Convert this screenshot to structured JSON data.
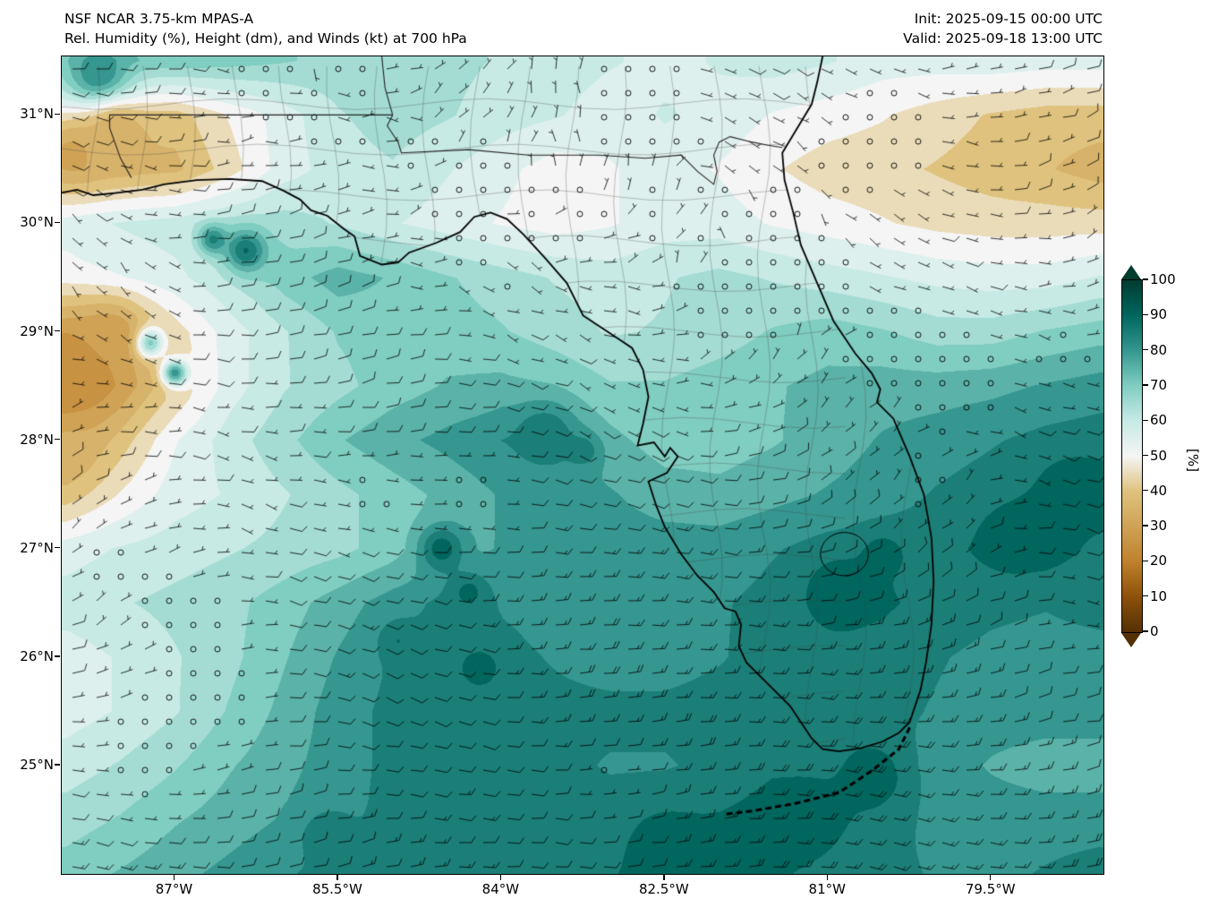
{
  "header": {
    "title_line1": "NSF NCAR 3.75-km MPAS-A",
    "title_line2": "Rel. Humidity (%), Height (dm), and Winds (kt) at 700 hPa",
    "init_label": "Init: 2025-09-15 00:00 UTC",
    "valid_label": "Valid: 2025-09-18 13:00 UTC"
  },
  "chart_data": {
    "type": "heatmap",
    "title": "NSF NCAR 3.75-km MPAS-A",
    "subtitle": "Rel. Humidity (%), Height (dm), and Winds (kt) at 700 hPa",
    "init_time": "2025-09-15 00:00 UTC",
    "valid_time": "2025-09-18 13:00 UTC",
    "variable": "Relative humidity at 700 hPa (%), wind barbs in kt; region: Florida and adjacent Gulf/Atlantic",
    "axes": {
      "lon_range": [
        -88.04,
        -78.47
      ],
      "lat_range": [
        24.0,
        31.54
      ],
      "x_ticks": [
        {
          "lon": -87.0,
          "label": "87°W"
        },
        {
          "lon": -85.5,
          "label": "85.5°W"
        },
        {
          "lon": -84.0,
          "label": "84°W"
        },
        {
          "lon": -82.5,
          "label": "82.5°W"
        },
        {
          "lon": -81.0,
          "label": "81°W"
        },
        {
          "lon": -79.5,
          "label": "79.5°W"
        }
      ],
      "y_ticks": [
        {
          "lat": 31.0,
          "label": "31°N"
        },
        {
          "lat": 30.0,
          "label": "30°N"
        },
        {
          "lat": 29.0,
          "label": "29°N"
        },
        {
          "lat": 28.0,
          "label": "28°N"
        },
        {
          "lat": 27.0,
          "label": "27°N"
        },
        {
          "lat": 26.0,
          "label": "26°N"
        },
        {
          "lat": 25.0,
          "label": "25°N"
        }
      ]
    },
    "colorbar": {
      "label": "[%]",
      "ticks": [
        0,
        10,
        20,
        30,
        40,
        50,
        60,
        70,
        80,
        90,
        100
      ],
      "stops": [
        {
          "v": 0,
          "c": "#543005"
        },
        {
          "v": 10,
          "c": "#8c510a"
        },
        {
          "v": 20,
          "c": "#bf812d"
        },
        {
          "v": 30,
          "c": "#cfa256"
        },
        {
          "v": 40,
          "c": "#dfc27d"
        },
        {
          "v": 50,
          "c": "#f5f5f5"
        },
        {
          "v": 60,
          "c": "#c7eae5"
        },
        {
          "v": 70,
          "c": "#80cdc1"
        },
        {
          "v": 80,
          "c": "#35978f"
        },
        {
          "v": 90,
          "c": "#01665e"
        },
        {
          "v": 100,
          "c": "#003c30"
        }
      ],
      "level_step": 5
    },
    "rh_field": {
      "lons_start": -88.0,
      "lons_step": 0.5,
      "n_lons": 20,
      "lats_start": 31.5,
      "lats_step": -0.5,
      "n_lats": 16,
      "values": [
        [
          68,
          70,
          72,
          70,
          68,
          66,
          65,
          64,
          62,
          60,
          58,
          56,
          58,
          60,
          58,
          55,
          55,
          56,
          55,
          55
        ],
        [
          50,
          42,
          40,
          48,
          55,
          62,
          65,
          63,
          60,
          58,
          55,
          58,
          56,
          52,
          50,
          48,
          45,
          42,
          40,
          40
        ],
        [
          38,
          35,
          36,
          45,
          55,
          60,
          62,
          58,
          54,
          50,
          52,
          55,
          52,
          48,
          45,
          44,
          42,
          40,
          38,
          35
        ],
        [
          55,
          58,
          60,
          63,
          65,
          62,
          58,
          55,
          52,
          50,
          52,
          55,
          55,
          52,
          50,
          48,
          46,
          45,
          45,
          45
        ],
        [
          50,
          53,
          56,
          62,
          70,
          75,
          72,
          68,
          65,
          62,
          60,
          62,
          64,
          62,
          60,
          58,
          56,
          55,
          55,
          58
        ],
        [
          30,
          34,
          45,
          55,
          62,
          68,
          70,
          70,
          68,
          65,
          62,
          63,
          65,
          68,
          70,
          68,
          65,
          65,
          68,
          70
        ],
        [
          25,
          30,
          42,
          55,
          62,
          66,
          70,
          73,
          74,
          72,
          68,
          68,
          70,
          72,
          74,
          75,
          75,
          76,
          78,
          80
        ],
        [
          30,
          40,
          52,
          60,
          66,
          72,
          76,
          79,
          82,
          80,
          74,
          70,
          70,
          72,
          75,
          78,
          80,
          82,
          84,
          85
        ],
        [
          40,
          48,
          55,
          58,
          62,
          66,
          70,
          74,
          78,
          80,
          78,
          75,
          74,
          76,
          78,
          80,
          83,
          85,
          88,
          90
        ],
        [
          55,
          58,
          60,
          62,
          64,
          66,
          70,
          74,
          78,
          80,
          80,
          80,
          80,
          82,
          84,
          85,
          86,
          88,
          90,
          86
        ],
        [
          60,
          62,
          64,
          66,
          70,
          75,
          80,
          84,
          82,
          80,
          80,
          80,
          82,
          84,
          86,
          88,
          86,
          84,
          83,
          85
        ],
        [
          55,
          58,
          62,
          66,
          72,
          78,
          83,
          85,
          84,
          82,
          80,
          80,
          82,
          85,
          86,
          85,
          83,
          81,
          80,
          80
        ],
        [
          55,
          58,
          62,
          68,
          74,
          80,
          84,
          85,
          85,
          84,
          84,
          84,
          85,
          85,
          85,
          84,
          82,
          80,
          80,
          80
        ],
        [
          60,
          63,
          67,
          72,
          76,
          80,
          84,
          85,
          85,
          84,
          82,
          82,
          84,
          86,
          84,
          82,
          80,
          77,
          75,
          75
        ],
        [
          65,
          68,
          72,
          75,
          78,
          81,
          84,
          85,
          85,
          85,
          85,
          87,
          88,
          90,
          87,
          84,
          81,
          80,
          80,
          80
        ],
        [
          70,
          73,
          76,
          79,
          82,
          84,
          85,
          85,
          85,
          86,
          87,
          89,
          90,
          88,
          86,
          84,
          82,
          81,
          83,
          85
        ]
      ]
    },
    "rh_blobs": [
      [
        -87.7,
        31.35,
        0.3,
        85
      ],
      [
        -86.35,
        29.75,
        0.2,
        90
      ],
      [
        -86.65,
        29.85,
        0.14,
        86
      ],
      [
        -87.25,
        28.9,
        0.14,
        86
      ],
      [
        -87.0,
        28.62,
        0.12,
        84
      ],
      [
        -84.55,
        27.0,
        0.22,
        92
      ],
      [
        -84.3,
        26.6,
        0.17,
        90
      ],
      [
        -84.95,
        26.15,
        0.17,
        88
      ],
      [
        -83.6,
        28.05,
        0.28,
        88
      ],
      [
        -83.25,
        27.9,
        0.17,
        86
      ],
      [
        -80.9,
        26.6,
        0.33,
        92
      ],
      [
        -80.5,
        26.95,
        0.22,
        90
      ],
      [
        -79.3,
        27.1,
        0.28,
        92
      ],
      [
        -78.75,
        27.55,
        0.33,
        90
      ],
      [
        -81.2,
        24.55,
        0.33,
        92
      ],
      [
        -84.2,
        25.9,
        0.22,
        90
      ],
      [
        -85.6,
        24.35,
        0.22,
        88
      ],
      [
        -82.5,
        24.25,
        0.33,
        90
      ],
      [
        -80.6,
        24.9,
        0.35,
        92
      ],
      [
        -87.95,
        28.6,
        0.4,
        22
      ],
      [
        -87.6,
        28.95,
        0.33,
        28
      ],
      [
        -87.95,
        30.65,
        0.33,
        30
      ],
      [
        -87.55,
        30.85,
        0.28,
        33
      ],
      [
        -88.0,
        27.9,
        0.3,
        35
      ]
    ],
    "wind": {
      "units": "kt",
      "barb_spacing_px": 27,
      "typical_speed_kt": [
        5,
        25
      ],
      "general_flow": "easterly to northeasterly",
      "calm_threshold_kt": 5,
      "calm_patches": [
        [
          -80.6,
          30.75,
          0.85
        ],
        [
          -82.7,
          31.25,
          0.45
        ],
        [
          -80.15,
          28.85,
          0.55
        ],
        [
          -79.6,
          28.55,
          0.4
        ],
        [
          -78.8,
          28.8,
          0.4
        ],
        [
          -84.3,
          27.5,
          0.55
        ],
        [
          -85.2,
          27.45,
          0.45
        ],
        [
          -86.9,
          26.4,
          0.6
        ],
        [
          -87.6,
          26.9,
          0.45
        ],
        [
          -87.3,
          25.1,
          0.95
        ],
        [
          -86.6,
          25.6,
          0.5
        ],
        [
          -83.0,
          24.9,
          0.35
        ],
        [
          -82.0,
          29.1,
          0.3
        ],
        [
          -80.15,
          27.55,
          0.25
        ],
        [
          -81.0,
          29.5,
          0.3
        ]
      ]
    },
    "geo": {
      "coast": [
        [
          -88.05,
          30.28
        ],
        [
          -87.9,
          30.31
        ],
        [
          -87.75,
          30.26
        ],
        [
          -87.55,
          30.28
        ],
        [
          -87.3,
          30.31
        ],
        [
          -87.1,
          30.36
        ],
        [
          -86.8,
          30.4
        ],
        [
          -86.5,
          30.41
        ],
        [
          -86.2,
          30.39
        ],
        [
          -86.0,
          30.3
        ],
        [
          -85.85,
          30.22
        ],
        [
          -85.75,
          30.12
        ],
        [
          -85.6,
          30.07
        ],
        [
          -85.45,
          29.95
        ],
        [
          -85.35,
          29.88
        ],
        [
          -85.3,
          29.7
        ],
        [
          -85.1,
          29.62
        ],
        [
          -84.95,
          29.64
        ],
        [
          -84.85,
          29.73
        ],
        [
          -84.6,
          29.82
        ],
        [
          -84.38,
          29.92
        ],
        [
          -84.25,
          30.06
        ],
        [
          -84.1,
          30.1
        ],
        [
          -83.95,
          30.04
        ],
        [
          -83.8,
          29.9
        ],
        [
          -83.6,
          29.68
        ],
        [
          -83.4,
          29.45
        ],
        [
          -83.25,
          29.15
        ],
        [
          -83.1,
          29.05
        ],
        [
          -82.95,
          28.95
        ],
        [
          -82.8,
          28.85
        ],
        [
          -82.7,
          28.65
        ],
        [
          -82.65,
          28.4
        ],
        [
          -82.7,
          28.15
        ],
        [
          -82.75,
          27.95
        ],
        [
          -82.6,
          27.98
        ],
        [
          -82.5,
          27.85
        ],
        [
          -82.45,
          27.93
        ],
        [
          -82.38,
          27.85
        ],
        [
          -82.48,
          27.7
        ],
        [
          -82.65,
          27.62
        ],
        [
          -82.58,
          27.4
        ],
        [
          -82.5,
          27.2
        ],
        [
          -82.35,
          26.95
        ],
        [
          -82.2,
          26.75
        ],
        [
          -82.05,
          26.6
        ],
        [
          -81.95,
          26.45
        ],
        [
          -81.85,
          26.42
        ],
        [
          -81.8,
          26.3
        ],
        [
          -81.82,
          26.1
        ],
        [
          -81.75,
          25.95
        ],
        [
          -81.55,
          25.75
        ],
        [
          -81.35,
          25.55
        ],
        [
          -81.15,
          25.25
        ],
        [
          -81.05,
          25.15
        ],
        [
          -80.9,
          25.13
        ],
        [
          -80.7,
          25.16
        ],
        [
          -80.5,
          25.22
        ],
        [
          -80.35,
          25.3
        ],
        [
          -80.25,
          25.4
        ],
        [
          -80.15,
          25.7
        ],
        [
          -80.1,
          25.95
        ],
        [
          -80.05,
          26.3
        ],
        [
          -80.03,
          26.7
        ],
        [
          -80.05,
          27.1
        ],
        [
          -80.12,
          27.5
        ],
        [
          -80.25,
          27.85
        ],
        [
          -80.4,
          28.2
        ],
        [
          -80.55,
          28.35
        ],
        [
          -80.52,
          28.47
        ],
        [
          -80.6,
          28.62
        ],
        [
          -80.75,
          28.8
        ],
        [
          -80.95,
          29.1
        ],
        [
          -81.1,
          29.45
        ],
        [
          -81.25,
          29.8
        ],
        [
          -81.32,
          30.1
        ],
        [
          -81.4,
          30.4
        ],
        [
          -81.42,
          30.65
        ],
        [
          -81.3,
          30.85
        ],
        [
          -81.15,
          31.1
        ],
        [
          -81.1,
          31.3
        ],
        [
          -81.05,
          31.54
        ]
      ],
      "keys": [
        [
          -80.25,
          25.35
        ],
        [
          -80.35,
          25.15
        ],
        [
          -80.6,
          24.95
        ],
        [
          -80.9,
          24.75
        ],
        [
          -81.3,
          24.65
        ],
        [
          -81.7,
          24.58
        ],
        [
          -81.95,
          24.55
        ]
      ],
      "lake_okeechobee": {
        "lon": -80.85,
        "lat": 26.95,
        "rx_deg": 0.22,
        "ry_deg": 0.2
      },
      "borders": [
        [
          [
            -87.4,
            30.42
          ],
          [
            -87.5,
            30.6
          ],
          [
            -87.6,
            30.88
          ],
          [
            -87.6,
            31.0
          ],
          [
            -85.0,
            31.0
          ]
        ],
        [
          [
            -85.0,
            31.0
          ],
          [
            -85.05,
            30.9
          ],
          [
            -84.95,
            30.75
          ],
          [
            -84.92,
            30.65
          ],
          [
            -84.3,
            30.68
          ],
          [
            -83.75,
            30.63
          ],
          [
            -83.1,
            30.63
          ],
          [
            -82.68,
            30.6
          ],
          [
            -82.35,
            30.63
          ],
          [
            -82.2,
            30.48
          ],
          [
            -82.05,
            30.36
          ],
          [
            -82.02,
            30.48
          ],
          [
            -82.05,
            30.63
          ],
          [
            -82.0,
            30.75
          ],
          [
            -81.9,
            30.8
          ],
          [
            -81.7,
            30.75
          ],
          [
            -81.55,
            30.72
          ],
          [
            -81.42,
            30.7
          ]
        ],
        [
          [
            -85.0,
            31.0
          ],
          [
            -85.07,
            31.25
          ],
          [
            -85.1,
            31.54
          ]
        ]
      ]
    }
  }
}
